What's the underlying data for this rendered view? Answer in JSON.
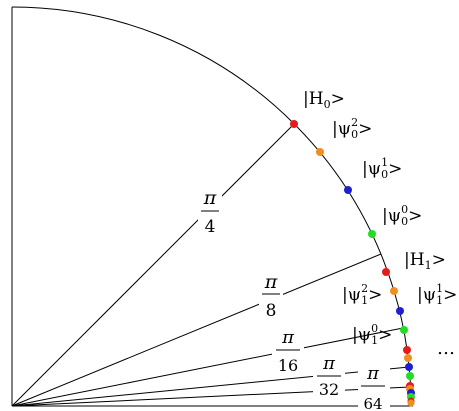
{
  "diagram": {
    "angle_labels": [
      {
        "num": "π",
        "den": "4"
      },
      {
        "num": "π",
        "den": "8"
      },
      {
        "num": "π",
        "den": "16"
      },
      {
        "num": "π",
        "den": "32"
      },
      {
        "num": "π",
        "den": "64"
      }
    ],
    "state_labels": {
      "H0": "|H",
      "H0_sub": "0",
      "H0_tail": ">",
      "psi02": "|ψ",
      "psi02_sup": "2",
      "psi02_sub": "0",
      "psi02_tail": ">",
      "psi01": "|ψ",
      "psi01_sup": "1",
      "psi01_sub": "0",
      "psi01_tail": ">",
      "psi00": "|ψ",
      "psi00_sup": "0",
      "psi00_sub": "0",
      "psi00_tail": ">",
      "H1": "|H",
      "H1_sub": "1",
      "H1_tail": ">",
      "psi12": "|ψ",
      "psi12_sup": "2",
      "psi12_sub": "1",
      "psi12_tail": ">",
      "psi11": "|ψ",
      "psi11_sup": "1",
      "psi11_sub": "1",
      "psi11_tail": ">",
      "psi10": "|ψ",
      "psi10_sup": "0",
      "psi10_sub": "1",
      "psi10_tail": ">"
    },
    "ellipsis": "…",
    "point_colors": {
      "H": "#e41a1c",
      "psi2": "#f28e1c",
      "psi1": "#1f1fd0",
      "psi0": "#22dd22"
    }
  }
}
